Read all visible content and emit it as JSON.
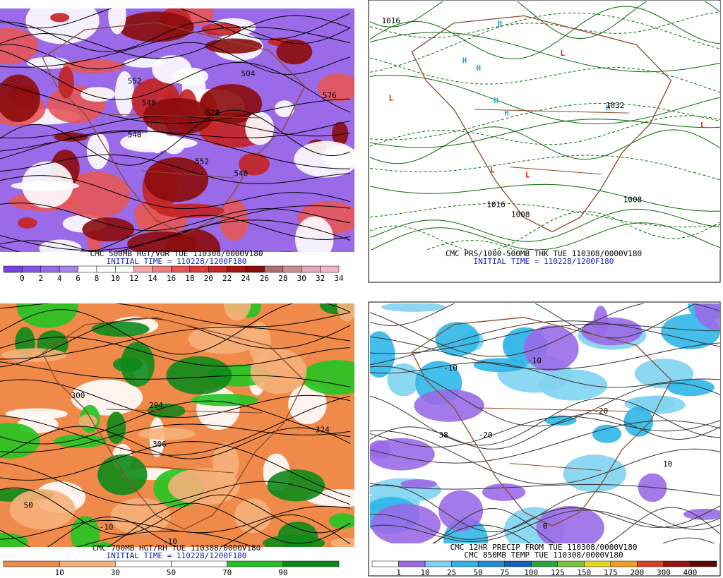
{
  "panels": [
    {
      "title": "CMC 500MB HGT/VOR TUE 110308/0000V180",
      "subtitle": "INITIAL TIME = 110228/1200F180",
      "colorbar": {
        "labels": [
          "0",
          "2",
          "4",
          "6",
          "8",
          "10",
          "12",
          "14",
          "16",
          "18",
          "20",
          "22",
          "24",
          "26",
          "28",
          "30",
          "32",
          "34"
        ],
        "colors": [
          "#7b3fe0",
          "#8a55e6",
          "#9a6ae8",
          "#ab82ec",
          "#ffffff",
          "#ffffff",
          "#ffffff",
          "#f4a3a3",
          "#ee7d7d",
          "#e65656",
          "#d93a3a",
          "#c42424",
          "#a81414",
          "#8c0c0c",
          "#b07070",
          "#c89090",
          "#e0a8b8",
          "#f2b8c8"
        ]
      },
      "contour_labels": [
        "552",
        "540",
        "528",
        "540",
        "504",
        "552",
        "576",
        "540"
      ]
    },
    {
      "title": "CMC PRS/1000-500MB THK TUE 110308/0000V180",
      "subtitle": "INITIAL TIME = 110228/1200F180",
      "contour_labels": [
        "H",
        "H",
        "H",
        "H",
        "H",
        "H",
        "L",
        "L",
        "L",
        "L",
        "L",
        "1016",
        "1008",
        "1032",
        "1008",
        "1016"
      ]
    },
    {
      "title": "CMC 700MB HGT/RH TUE 110308/0000V180",
      "subtitle": "INITIAL TIME = 110228/1200F180",
      "colorbar": {
        "labels": [
          "10",
          "30",
          "50",
          "70",
          "90"
        ],
        "colors": [
          "#f08a4b",
          "#f6b07a",
          "#ffffff",
          "#ffffff",
          "#22c422",
          "#0e8a1a"
        ]
      },
      "contour_labels": [
        "300",
        "294",
        "324",
        "306",
        "-10",
        "-10",
        "50"
      ]
    },
    {
      "title": "CMC 12HR PRECIP FROM TUE 110308/0000V180",
      "subtitle": "CMC 850MB TEMP TUE 110308/0000V180",
      "colorbar": {
        "labels": [
          "1",
          "10",
          "25",
          "50",
          "75",
          "100",
          "125",
          "150",
          "175",
          "200",
          "300",
          "400"
        ],
        "colors": [
          "#ffffff",
          "#9a6ae8",
          "#7fd3f0",
          "#2fb6e8",
          "#1a8fd8",
          "#1060c0",
          "#2aa63a",
          "#7ac43a",
          "#e8d820",
          "#f0a020",
          "#d84020",
          "#a01010",
          "#600808"
        ]
      },
      "contour_labels": [
        "-20",
        "-10",
        "-20",
        "10",
        "0",
        "-10",
        "38"
      ]
    }
  ]
}
